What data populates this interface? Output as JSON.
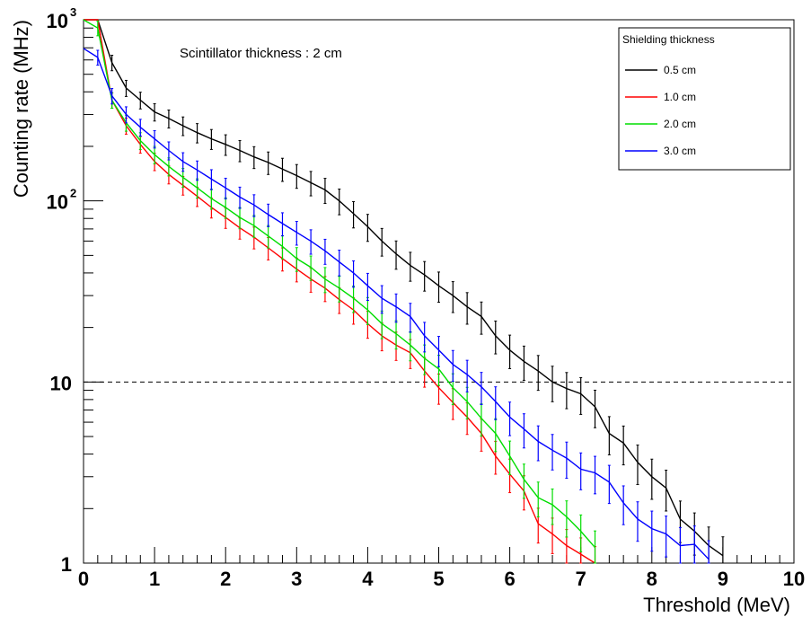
{
  "chart_data": {
    "type": "line",
    "title": "",
    "xlabel": "Threshold (MeV)",
    "ylabel": "Counting rate (MHz)",
    "xlim": [
      0,
      10
    ],
    "ylim": [
      1,
      1000
    ],
    "yscale": "log",
    "grid": false,
    "legend_placement": "top-right",
    "legend_title": "Shielding thickness",
    "annotation": "Scintillator thickness : 2 cm",
    "reference_line": {
      "y": 10,
      "style": "dashed"
    },
    "x_ticks": [
      "0",
      "1",
      "2",
      "3",
      "4",
      "5",
      "6",
      "7",
      "8",
      "9",
      "10"
    ],
    "y_ticks": [
      {
        "value": 1,
        "base": "1",
        "exp": ""
      },
      {
        "value": 10,
        "base": "10",
        "exp": ""
      },
      {
        "value": 100,
        "base": "10",
        "exp": "2"
      },
      {
        "value": 1000,
        "base": "10",
        "exp": "3"
      }
    ],
    "series": [
      {
        "name": "0.5 cm",
        "color": "#000000",
        "x": [
          0.2,
          0.4,
          0.6,
          0.8,
          1.0,
          1.2,
          1.4,
          1.6,
          1.8,
          2.0,
          2.2,
          2.4,
          2.6,
          2.8,
          3.0,
          3.2,
          3.4,
          3.6,
          3.8,
          4.0,
          4.2,
          4.4,
          4.6,
          4.8,
          5.0,
          5.2,
          5.4,
          5.6,
          5.8,
          6.0,
          6.2,
          6.4,
          6.6,
          6.8,
          7.0,
          7.2,
          7.4,
          7.6,
          7.8,
          8.0,
          8.2,
          8.4,
          8.6,
          8.8,
          9.0
        ],
        "y": [
          1000,
          580,
          420,
          360,
          310,
          285,
          260,
          238,
          220,
          205,
          190,
          175,
          163,
          150,
          138,
          126,
          115,
          100,
          85,
          72,
          60,
          51,
          44,
          39,
          34,
          30,
          26,
          23,
          18,
          15,
          13,
          11.5,
          10,
          9.2,
          8.6,
          7.3,
          5.2,
          4.6,
          3.6,
          3.0,
          2.6,
          1.75,
          1.5,
          1.25,
          1.1
        ]
      },
      {
        "name": "1.0 cm",
        "color": "#ff0000",
        "x": [
          0.2,
          0.4,
          0.6,
          0.8,
          1.0,
          1.2,
          1.4,
          1.6,
          1.8,
          2.0,
          2.2,
          2.4,
          2.6,
          2.8,
          3.0,
          3.2,
          3.4,
          3.6,
          3.8,
          4.0,
          4.2,
          4.4,
          4.6,
          4.8,
          5.0,
          5.2,
          5.4,
          5.6,
          5.8,
          6.0,
          6.2,
          6.4,
          6.6,
          6.8,
          7.0,
          7.2
        ],
        "y": [
          1000,
          360,
          260,
          205,
          165,
          140,
          122,
          106,
          92,
          81,
          71,
          63,
          55,
          48,
          42,
          37,
          33,
          28.5,
          25,
          21,
          18,
          16,
          14.5,
          11.5,
          9.3,
          7.7,
          6.4,
          5.2,
          3.9,
          3.1,
          2.5,
          1.65,
          1.45,
          1.25,
          1.12,
          1.0
        ]
      },
      {
        "name": "2.0 cm",
        "color": "#00dd00",
        "x": [
          0.2,
          0.4,
          0.6,
          0.8,
          1.0,
          1.2,
          1.4,
          1.6,
          1.8,
          2.0,
          2.2,
          2.4,
          2.6,
          2.8,
          3.0,
          3.2,
          3.4,
          3.6,
          3.8,
          4.0,
          4.2,
          4.4,
          4.6,
          4.8,
          5.0,
          5.2,
          5.4,
          5.6,
          5.8,
          6.0,
          6.2,
          6.4,
          6.6,
          6.8,
          7.0,
          7.2
        ],
        "y": [
          900,
          360,
          270,
          215,
          180,
          155,
          135,
          118,
          103,
          92,
          81,
          73,
          64,
          56,
          48,
          43,
          37,
          33,
          29,
          25,
          21,
          18.5,
          16,
          13.5,
          11.8,
          9.3,
          7.8,
          6.3,
          5.2,
          3.9,
          2.9,
          2.3,
          2.1,
          1.8,
          1.5,
          1.22
        ]
      },
      {
        "name": "3.0 cm",
        "color": "#0000ff",
        "x": [
          0.2,
          0.4,
          0.6,
          0.8,
          1.0,
          1.2,
          1.4,
          1.6,
          1.8,
          2.0,
          2.2,
          2.4,
          2.6,
          2.8,
          3.0,
          3.2,
          3.4,
          3.6,
          3.8,
          4.0,
          4.2,
          4.4,
          4.6,
          4.8,
          5.0,
          5.2,
          5.4,
          5.6,
          5.8,
          6.0,
          6.2,
          6.4,
          6.6,
          6.8,
          7.0,
          7.2,
          7.4,
          7.6,
          7.8,
          8.0,
          8.2,
          8.4,
          8.6,
          8.8
        ],
        "y": [
          620,
          380,
          300,
          255,
          220,
          190,
          165,
          148,
          132,
          118,
          105,
          95,
          84,
          75,
          67,
          60,
          53,
          46,
          40,
          34,
          29,
          26,
          23,
          18,
          15,
          12.5,
          11,
          9.4,
          7.8,
          6.4,
          5.5,
          4.7,
          4.2,
          3.8,
          3.3,
          3.15,
          2.8,
          2.15,
          1.75,
          1.55,
          1.45,
          1.25,
          1.27,
          1.05
        ]
      }
    ]
  }
}
